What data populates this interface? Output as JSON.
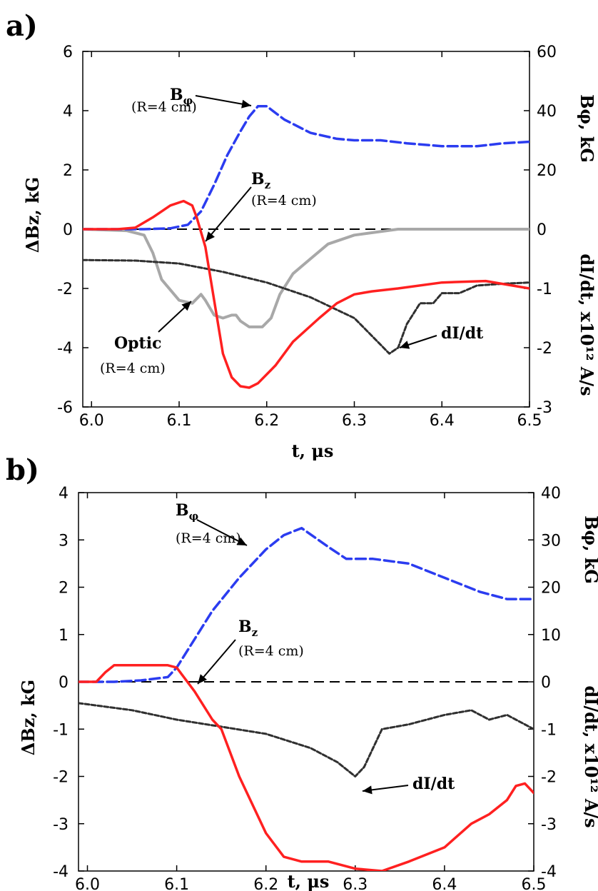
{
  "chart_data": [
    {
      "panel_label": "a)",
      "type": "line",
      "xlabel": "t, μs",
      "ylabel_left": "ΔBz, kG",
      "ylabel_right_upper": "Bφ, kG",
      "ylabel_right_lower": "dI/dt, x10¹² A/s",
      "xlim": [
        5.99,
        6.5
      ],
      "ylim": [
        -6,
        6
      ],
      "x_ticks": [
        "6.0",
        "6.1",
        "6.2",
        "6.3",
        "6.4",
        "6.5"
      ],
      "left_ticks": [
        "6",
        "4",
        "2",
        "0",
        "-2",
        "-4",
        "-6"
      ],
      "right_upper_ticks": [
        "60",
        "40",
        "20",
        "0"
      ],
      "right_lower_ticks": [
        "-1",
        "-2",
        "-3"
      ],
      "series": [
        {
          "key": "bphi",
          "axis": "bphi",
          "color": "#2b3cf0",
          "dash": "14 6",
          "width": 3.5,
          "x": [
            5.99,
            6.03,
            6.06,
            6.09,
            6.11,
            6.125,
            6.14,
            6.155,
            6.17,
            6.18,
            6.19,
            6.2,
            6.22,
            6.25,
            6.28,
            6.3,
            6.33,
            6.36,
            6.4,
            6.44,
            6.47,
            6.5
          ],
          "y": [
            0,
            0,
            0,
            0.3,
            1.5,
            6,
            15,
            25,
            33,
            38,
            41.5,
            41.5,
            37,
            32.5,
            30.5,
            30,
            30,
            29,
            28,
            28,
            29,
            29.5
          ]
        },
        {
          "key": "bz",
          "axis": "left",
          "color": "#ff2020",
          "dash": "",
          "width": 3.5,
          "x": [
            5.99,
            6.03,
            6.05,
            6.07,
            6.09,
            6.105,
            6.115,
            6.12,
            6.13,
            6.14,
            6.15,
            6.16,
            6.17,
            6.18,
            6.19,
            6.21,
            6.23,
            6.26,
            6.28,
            6.3,
            6.32,
            6.35,
            6.4,
            6.45,
            6.5
          ],
          "y": [
            0,
            0,
            0.05,
            0.4,
            0.8,
            0.95,
            0.8,
            0.4,
            -0.6,
            -2.4,
            -4.2,
            -5.0,
            -5.3,
            -5.35,
            -5.2,
            -4.6,
            -3.8,
            -3.0,
            -2.5,
            -2.2,
            -2.1,
            -2.0,
            -1.8,
            -1.75,
            -2.0
          ]
        },
        {
          "key": "optic",
          "axis": "left",
          "color": "#a8a8a8",
          "dash": "",
          "width": 4,
          "x": [
            5.99,
            6.04,
            6.06,
            6.07,
            6.08,
            6.1,
            6.115,
            6.125,
            6.13,
            6.14,
            6.15,
            6.16,
            6.165,
            6.17,
            6.18,
            6.195,
            6.205,
            6.215,
            6.23,
            6.25,
            6.27,
            6.3,
            6.35,
            6.4,
            6.5
          ],
          "y": [
            0,
            -0.05,
            -0.2,
            -0.8,
            -1.7,
            -2.4,
            -2.5,
            -2.2,
            -2.4,
            -2.9,
            -3.0,
            -2.9,
            -2.9,
            -3.1,
            -3.3,
            -3.3,
            -3.0,
            -2.2,
            -1.5,
            -1.0,
            -0.5,
            -0.2,
            0,
            0,
            0
          ]
        },
        {
          "key": "didt",
          "axis": "didt",
          "color": "#303030",
          "dash": "6 3",
          "width": 3,
          "x": [
            5.99,
            6.05,
            6.1,
            6.15,
            6.2,
            6.25,
            6.3,
            6.32,
            6.34,
            6.35,
            6.36,
            6.375,
            6.39,
            6.4,
            6.42,
            6.44,
            6.47,
            6.5
          ],
          "y": [
            -0.52,
            -0.53,
            -0.58,
            -0.72,
            -0.9,
            -1.15,
            -1.5,
            -1.8,
            -2.1,
            -2.0,
            -1.6,
            -1.25,
            -1.25,
            -1.08,
            -1.08,
            -0.95,
            -0.92,
            -0.9
          ]
        }
      ],
      "annotations": [
        {
          "main": "B",
          "sub": "φ",
          "detail": "(R=4 cm)"
        },
        {
          "main": "B",
          "sub": "z",
          "detail": "(R=4 cm)"
        },
        {
          "main": "Optic",
          "detail": "(R=4 cm)"
        },
        {
          "main": "dI/dt"
        }
      ]
    },
    {
      "panel_label": "b)",
      "type": "line",
      "xlabel": "t, μs",
      "ylabel_left": "ΔBz, kG",
      "ylabel_right_upper": "Bφ, kG",
      "ylabel_right_lower": "dI/dt, x10¹² A/s",
      "xlim": [
        5.99,
        6.5
      ],
      "ylim": [
        -4,
        4
      ],
      "x_ticks": [
        "6.0",
        "6.1",
        "6.2",
        "6.3",
        "6.4",
        "6.5"
      ],
      "left_ticks": [
        "4",
        "3",
        "2",
        "1",
        "0",
        "-1",
        "-2",
        "-3",
        "-4"
      ],
      "right_upper_ticks": [
        "40",
        "30",
        "20",
        "10",
        "0"
      ],
      "right_lower_ticks": [
        "-1",
        "-2",
        "-3",
        "-4"
      ],
      "series": [
        {
          "key": "bphi",
          "axis": "bphi",
          "color": "#2b3cf0",
          "dash": "14 6",
          "width": 3.5,
          "x": [
            5.99,
            6.03,
            6.06,
            6.09,
            6.1,
            6.12,
            6.14,
            6.17,
            6.2,
            6.22,
            6.24,
            6.27,
            6.29,
            6.32,
            6.36,
            6.4,
            6.44,
            6.47,
            6.5
          ],
          "y": [
            0,
            0,
            0.3,
            1,
            3,
            9,
            15,
            22,
            28,
            31,
            32.5,
            28.5,
            26,
            26,
            25,
            22,
            19,
            17.5,
            17.5
          ]
        },
        {
          "key": "bz",
          "axis": "left",
          "color": "#ff2020",
          "dash": "",
          "width": 3.5,
          "x": [
            5.99,
            6.01,
            6.02,
            6.03,
            6.06,
            6.09,
            6.1,
            6.12,
            6.14,
            6.15,
            6.17,
            6.2,
            6.22,
            6.24,
            6.27,
            6.3,
            6.33,
            6.36,
            6.4,
            6.43,
            6.45,
            6.47,
            6.48,
            6.49,
            6.5
          ],
          "y": [
            0,
            0,
            0.2,
            0.35,
            0.35,
            0.35,
            0.3,
            -0.2,
            -0.8,
            -1.0,
            -2.0,
            -3.2,
            -3.7,
            -3.8,
            -3.8,
            -3.95,
            -4.0,
            -3.8,
            -3.5,
            -3.0,
            -2.8,
            -2.5,
            -2.2,
            -2.15,
            -2.35
          ]
        },
        {
          "key": "didt",
          "axis": "didt",
          "color": "#303030",
          "dash": "6 3",
          "width": 3,
          "x": [
            5.99,
            6.05,
            6.1,
            6.15,
            6.2,
            6.25,
            6.28,
            6.3,
            6.31,
            6.32,
            6.33,
            6.36,
            6.4,
            6.43,
            6.45,
            6.47,
            6.5
          ],
          "y": [
            -0.45,
            -0.6,
            -0.8,
            -0.95,
            -1.1,
            -1.4,
            -1.7,
            -2.0,
            -1.8,
            -1.4,
            -1.0,
            -0.9,
            -0.7,
            -0.6,
            -0.8,
            -0.7,
            -1.0
          ]
        }
      ],
      "annotations": [
        {
          "main": "B",
          "sub": "φ",
          "detail": "(R=4 cm)"
        },
        {
          "main": "B",
          "sub": "z",
          "detail": "(R=4 cm)"
        },
        {
          "main": "dI/dt"
        }
      ]
    }
  ]
}
